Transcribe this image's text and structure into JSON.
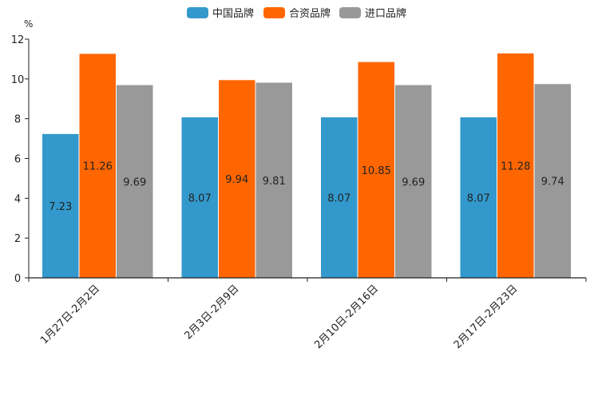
{
  "chart_data": {
    "type": "bar",
    "title": "",
    "xlabel": "",
    "ylabel": "",
    "unit": "%",
    "ylim": [
      0,
      12
    ],
    "yticks": [
      0,
      2,
      4,
      6,
      8,
      10,
      12
    ],
    "yticklabels": [
      "0",
      "2",
      "4",
      "6",
      "8",
      "10",
      "12"
    ],
    "grid": false,
    "legend_position": "top-center",
    "categories": [
      "1月27日-2月2日",
      "2月3日-2月9日",
      "2月10日-2月16日",
      "2月17日-2月23日"
    ],
    "series": [
      {
        "name": "中国品牌",
        "color": "#3399cc",
        "values": [
          7.23,
          8.07,
          8.07,
          8.07
        ],
        "labels": [
          "7.23",
          "8.07",
          "8.07",
          "8.07"
        ]
      },
      {
        "name": "合资品牌",
        "color": "#ff6600",
        "values": [
          11.26,
          9.94,
          10.85,
          11.28
        ],
        "labels": [
          "11.26",
          "9.94",
          "10.85",
          "11.28"
        ]
      },
      {
        "name": "进口品牌",
        "color": "#999999",
        "values": [
          9.69,
          9.81,
          9.69,
          9.74
        ],
        "labels": [
          "9.69",
          "9.81",
          "9.69",
          "9.74"
        ]
      }
    ]
  }
}
